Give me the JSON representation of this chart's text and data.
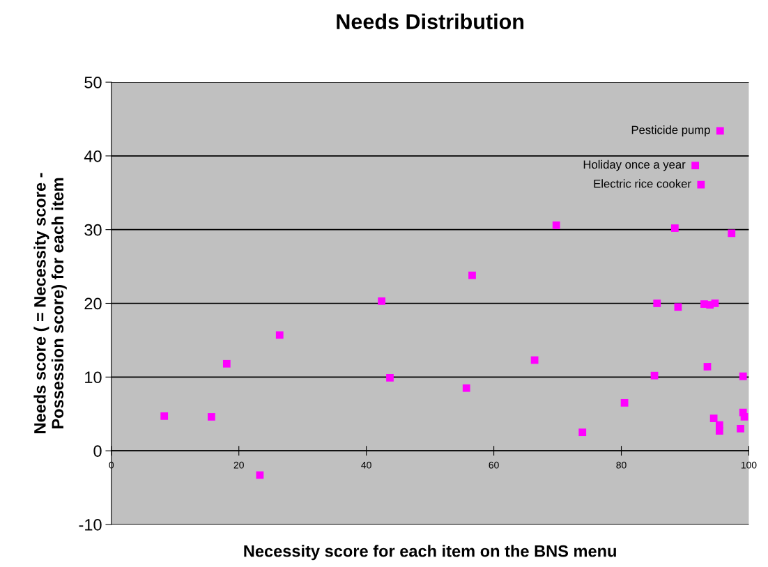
{
  "chart_data": {
    "type": "scatter",
    "title": "Needs Distribution",
    "xlabel": "Necessity score for each item on the BNS menu",
    "ylabel": "Needs score ( = Necessity score -\nPossession score) for each item",
    "x": [
      8.3,
      15.7,
      18.1,
      23.3,
      26.4,
      42.4,
      43.7,
      55.7,
      56.6,
      66.4,
      69.8,
      73.9,
      80.5,
      85.2,
      85.6,
      88.4,
      88.9,
      91.6,
      92.5,
      93.0,
      93.9,
      93.5,
      94.7,
      94.5,
      95.5,
      95.4,
      95.4,
      97.3,
      98.7,
      99.1,
      99.1,
      99.3
    ],
    "values": [
      4.7,
      4.6,
      11.8,
      -3.3,
      15.7,
      20.3,
      9.9,
      8.5,
      23.8,
      12.3,
      30.6,
      2.5,
      6.5,
      10.2,
      20.0,
      30.2,
      19.5,
      38.7,
      36.1,
      19.9,
      19.8,
      11.4,
      20.0,
      4.4,
      43.4,
      3.5,
      2.7,
      29.5,
      3.0,
      10.1,
      5.2,
      4.6
    ],
    "color": "#ff00ff",
    "marker": "square",
    "xlim": [
      0,
      100
    ],
    "ylim": [
      -10,
      50
    ],
    "xticks": [
      0,
      20,
      40,
      60,
      80,
      100
    ],
    "yticks": [
      -10,
      0,
      10,
      20,
      30,
      40,
      50
    ],
    "grid": "y",
    "annotations": [
      {
        "text": "Pesticide pump",
        "x": 95.5,
        "y": 43.4
      },
      {
        "text": "Holiday once a year",
        "x": 91.6,
        "y": 38.7
      },
      {
        "text": "Electric rice cooker",
        "x": 92.5,
        "y": 36.1
      }
    ]
  }
}
